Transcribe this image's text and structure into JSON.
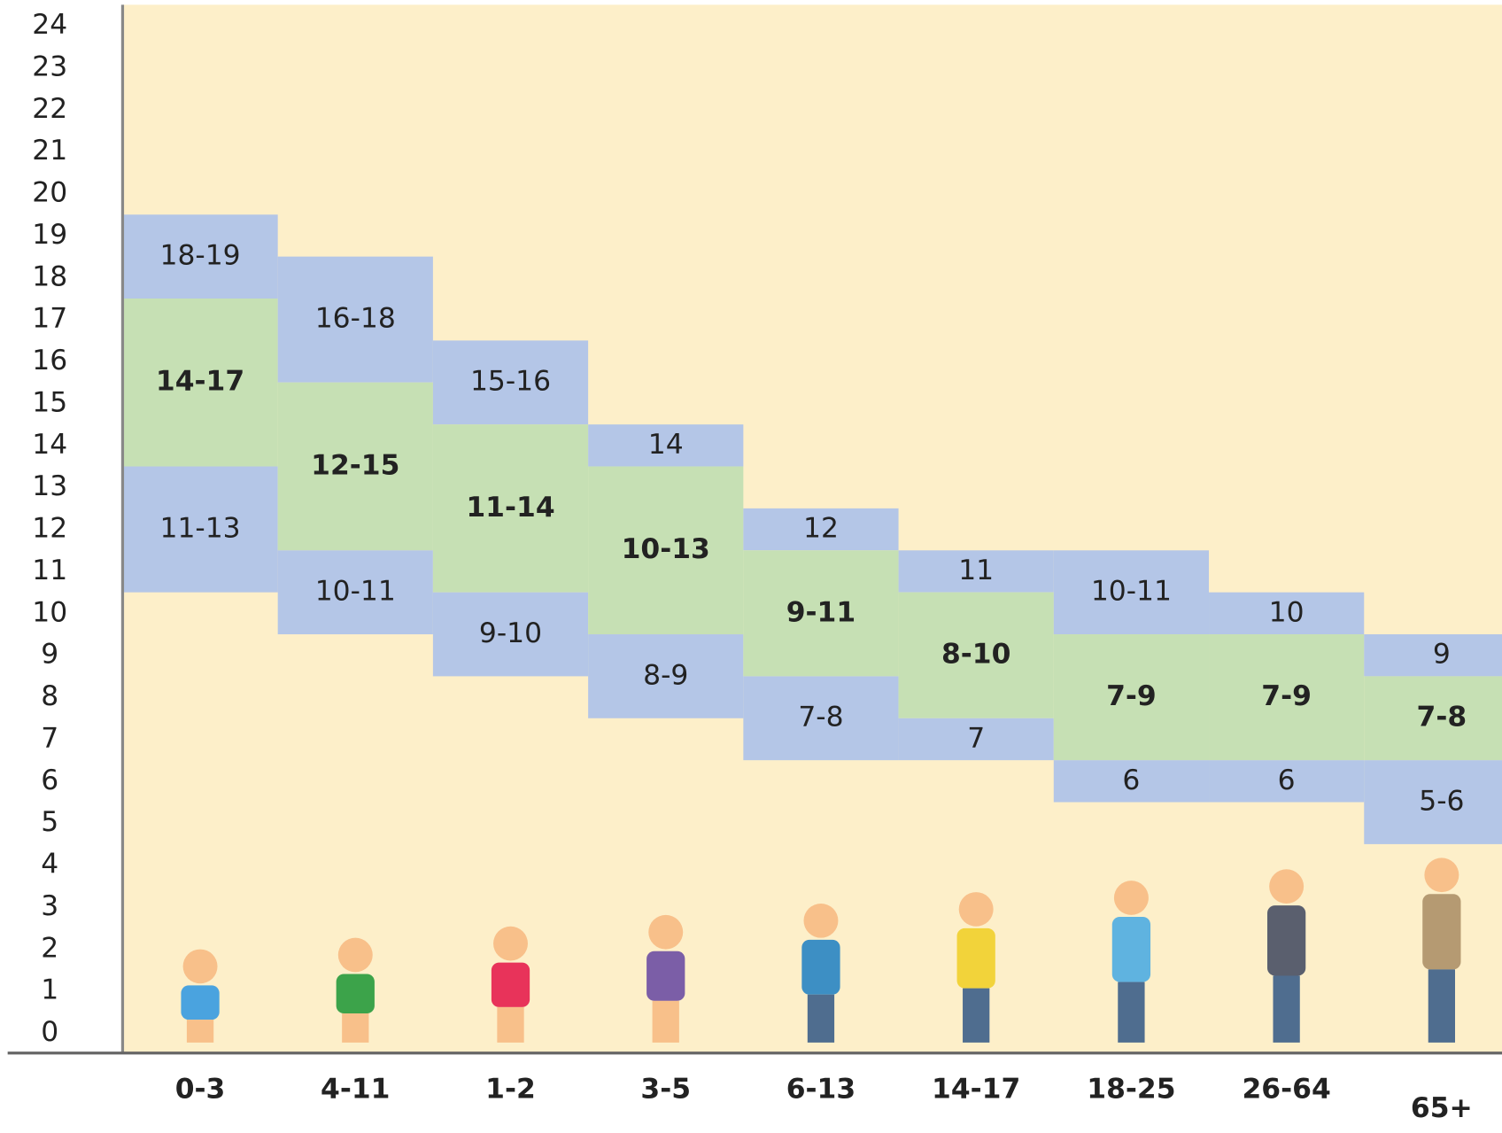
{
  "chart_data": {
    "type": "range",
    "categories": [
      "0-3",
      "4-11",
      "1-2",
      "3-5",
      "6-13",
      "14-17",
      "18-25",
      "26-64",
      "65+"
    ],
    "segments": [
      [
        {
          "label": "18-19",
          "low": 18,
          "high": 19,
          "color": "#b4c6e7"
        },
        {
          "label": "14-17",
          "low": 14,
          "high": 17,
          "color": "#c6e0b4"
        },
        {
          "label": "11-13",
          "low": 11,
          "high": 13,
          "color": "#b4c6e7"
        }
      ],
      [
        {
          "label": "16-18",
          "low": 16,
          "high": 18,
          "color": "#b4c6e7"
        },
        {
          "label": "12-15",
          "low": 12,
          "high": 15,
          "color": "#c6e0b4"
        },
        {
          "label": "10-11",
          "low": 10,
          "high": 11,
          "color": "#b4c6e7"
        }
      ],
      [
        {
          "label": "15-16",
          "low": 15,
          "high": 16,
          "color": "#b4c6e7"
        },
        {
          "label": "11-14",
          "low": 11,
          "high": 14,
          "color": "#c6e0b4"
        },
        {
          "label": "9-10",
          "low": 9,
          "high": 10,
          "color": "#b4c6e7"
        }
      ],
      [
        {
          "label": "14",
          "low": 14,
          "high": 14,
          "color": "#b4c6e7"
        },
        {
          "label": "10-13",
          "low": 10,
          "high": 13,
          "color": "#c6e0b4"
        },
        {
          "label": "8-9",
          "low": 8,
          "high": 9,
          "color": "#b4c6e7"
        }
      ],
      [
        {
          "label": "12",
          "low": 12,
          "high": 12,
          "color": "#b4c6e7"
        },
        {
          "label": "9-11",
          "low": 9,
          "high": 11,
          "color": "#c6e0b4"
        },
        {
          "label": "7-8",
          "low": 7,
          "high": 8,
          "color": "#b4c6e7"
        }
      ],
      [
        {
          "label": "11",
          "low": 11,
          "high": 11,
          "color": "#b4c6e7"
        },
        {
          "label": "8-10",
          "low": 8,
          "high": 10,
          "color": "#c6e0b4"
        },
        {
          "label": "7",
          "low": 7,
          "high": 7,
          "color": "#b4c6e7"
        }
      ],
      [
        {
          "label": "10-11",
          "low": 10,
          "high": 11,
          "color": "#b4c6e7"
        },
        {
          "label": "7-9",
          "low": 7,
          "high": 9,
          "color": "#c6e0b4"
        },
        {
          "label": "6",
          "low": 6,
          "high": 6,
          "color": "#b4c6e7"
        }
      ],
      [
        {
          "label": "10",
          "low": 10,
          "high": 10,
          "color": "#b4c6e7"
        },
        {
          "label": "7-9",
          "low": 7,
          "high": 9,
          "color": "#c6e0b4"
        },
        {
          "label": "6",
          "low": 6,
          "high": 6,
          "color": "#b4c6e7"
        }
      ],
      [
        {
          "label": "9",
          "low": 9,
          "high": 9,
          "color": "#b4c6e7"
        },
        {
          "label": "7-8",
          "low": 7,
          "high": 8,
          "color": "#c6e0b4"
        },
        {
          "label": "5-6",
          "low": 5,
          "high": 6,
          "color": "#b4c6e7"
        }
      ]
    ],
    "ylim": [
      -0.5,
      24.5
    ],
    "yticks": [
      0,
      1,
      2,
      3,
      4,
      5,
      6,
      7,
      8,
      9,
      10,
      11,
      12,
      13,
      14,
      15,
      16,
      17,
      18,
      19,
      20,
      21,
      22,
      23,
      24
    ],
    "background": "#fdefc9"
  }
}
